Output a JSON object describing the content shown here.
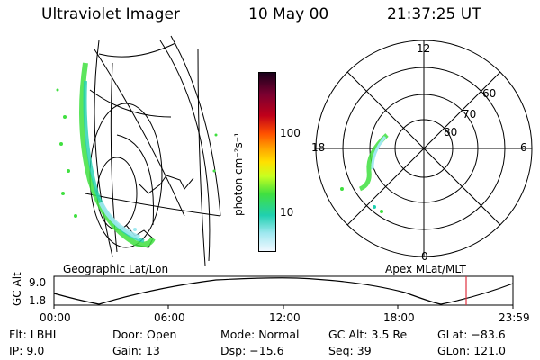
{
  "header": {
    "instrument": "Ultraviolet Imager",
    "date": "10 May 00",
    "time": "21:37:25 UT"
  },
  "colorbar": {
    "unit_label": "photon cm⁻²s⁻¹",
    "ticks": [
      "100",
      "10"
    ],
    "scale": "log",
    "colors": [
      "#1a001a",
      "#7a0030",
      "#c0001a",
      "#ff5000",
      "#ffa000",
      "#ffe000",
      "#c8ff20",
      "#40e040",
      "#20d0b0",
      "#a0e8f0",
      "#f0f8ff"
    ]
  },
  "left_panel": {
    "label": "Geographic Lat/Lon"
  },
  "right_panel": {
    "label": "Apex MLat/MLT",
    "mlt_labels": [
      "12",
      "18",
      "6",
      "0"
    ],
    "mlat_labels": [
      "60",
      "70",
      "80"
    ]
  },
  "timeline": {
    "ylabel": "GC Alt",
    "y_top": "9.0",
    "y_bottom": "1.8",
    "ticks": [
      "00:00",
      "06:00",
      "12:00",
      "18:00",
      "23:59"
    ],
    "marker_color": "#e03040"
  },
  "status": {
    "row1": [
      {
        "key": "Flt:",
        "value": "LBHL"
      },
      {
        "key": "Door:",
        "value": "Open"
      },
      {
        "key": "Mode:",
        "value": "Normal"
      },
      {
        "key": "GC Alt:",
        "value": "3.5 Re"
      },
      {
        "key": "GLat:",
        "value": "−83.6"
      }
    ],
    "row2": [
      {
        "key": "IP:",
        "value": "9.0"
      },
      {
        "key": "Gain:",
        "value": "13"
      },
      {
        "key": "Dsp:",
        "value": "−15.6"
      },
      {
        "key": "Seq:",
        "value": "39"
      },
      {
        "key": "GLon:",
        "value": "121.0"
      }
    ]
  }
}
